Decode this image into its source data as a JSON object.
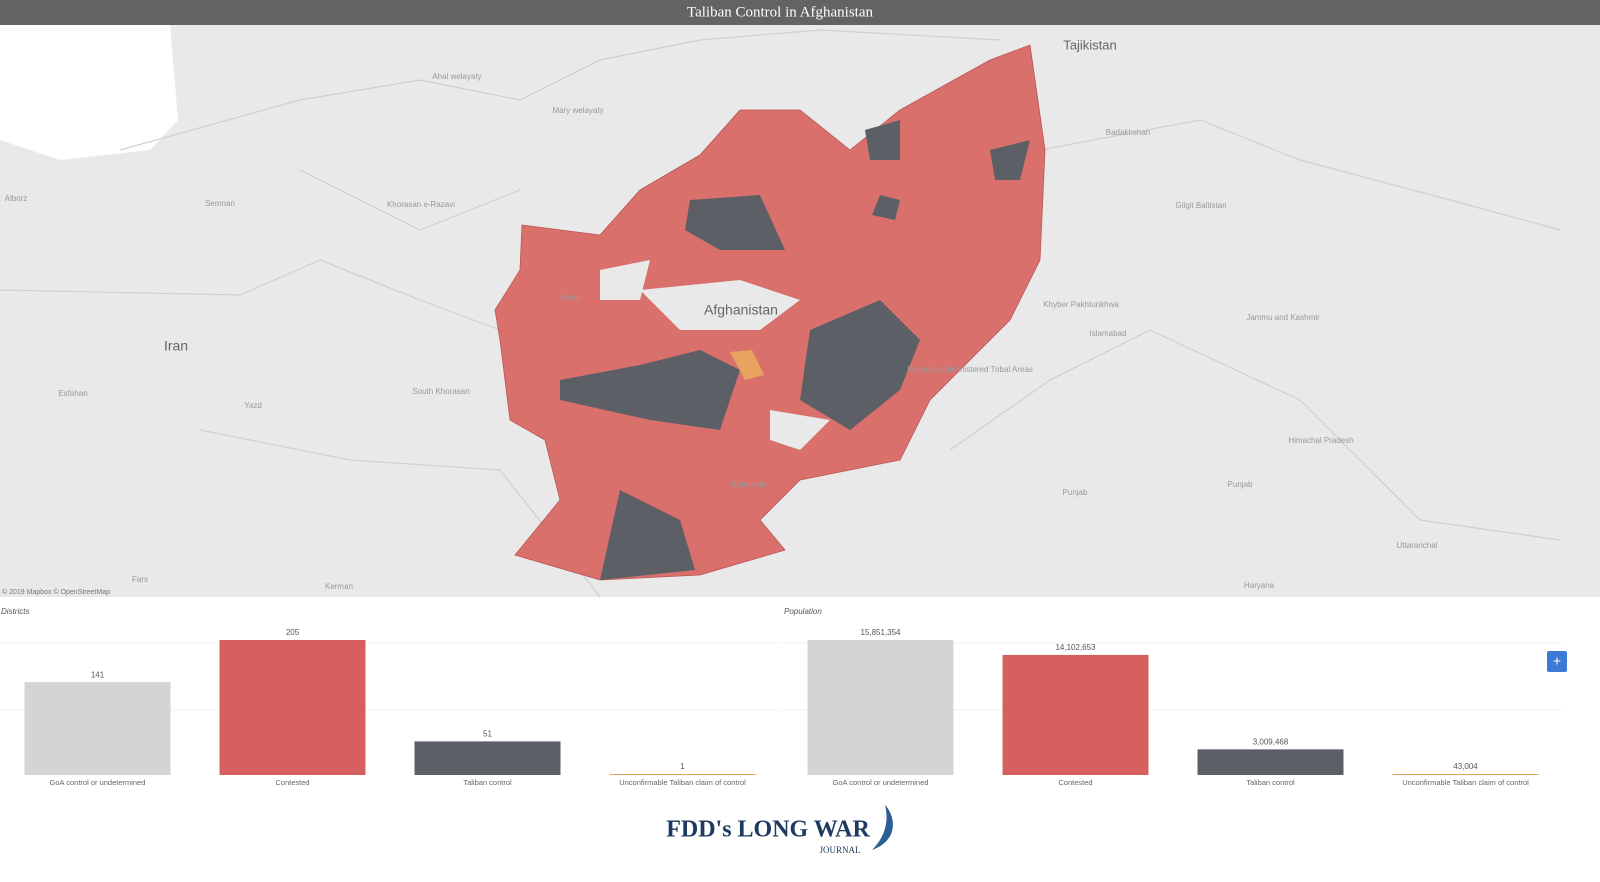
{
  "header": {
    "title": "Taliban Control in Afghanistan"
  },
  "map": {
    "labels": [
      "Tajikistan",
      "Afghanistan",
      "Iran",
      "Semnan",
      "Khorasan e-Razavi",
      "Ahal welayaty",
      "Mary welayaty",
      "Herat",
      "Badakhshan",
      "Gilgit Baltistan",
      "Khyber Pakhtunkhwa",
      "Islamabad",
      "Jammu and Kashmir",
      "Federally Administered Tribal Areas",
      "Punjab",
      "Punjab",
      "Himachal Pradesh",
      "Uttaranchal",
      "Haryana",
      "Kandahar",
      "South Khorasan",
      "Esfahan",
      "Yazd",
      "Kerman",
      "Fars",
      "Alborz"
    ],
    "attribution": "© 2019 Mapbox © OpenStreetMap"
  },
  "chart_data": [
    {
      "type": "bar",
      "title": "Districts",
      "categories": [
        "GoA control or undetermined",
        "Contested",
        "Taliban control",
        "Unconfirmable Taliban claim of control"
      ],
      "values": [
        141,
        205,
        51,
        1
      ],
      "colors": [
        "#d4d4d4",
        "#d6605d",
        "#5c5f66",
        "#e7a35f"
      ]
    },
    {
      "type": "bar",
      "title": "Population",
      "categories": [
        "GoA control or undetermined",
        "Contested",
        "Taliban control",
        "Unconfirmable Taliban claim of control"
      ],
      "values": [
        15851354,
        14102653,
        3009468,
        43004
      ],
      "value_labels": [
        "15,851,354",
        "14,102,653",
        "3,009,468",
        "43,004"
      ],
      "colors": [
        "#d4d4d4",
        "#d6605d",
        "#5c5f66",
        "#e7a35f"
      ]
    }
  ],
  "logo": {
    "name": "FDD's LONG WAR",
    "sub": "JOURNAL"
  }
}
